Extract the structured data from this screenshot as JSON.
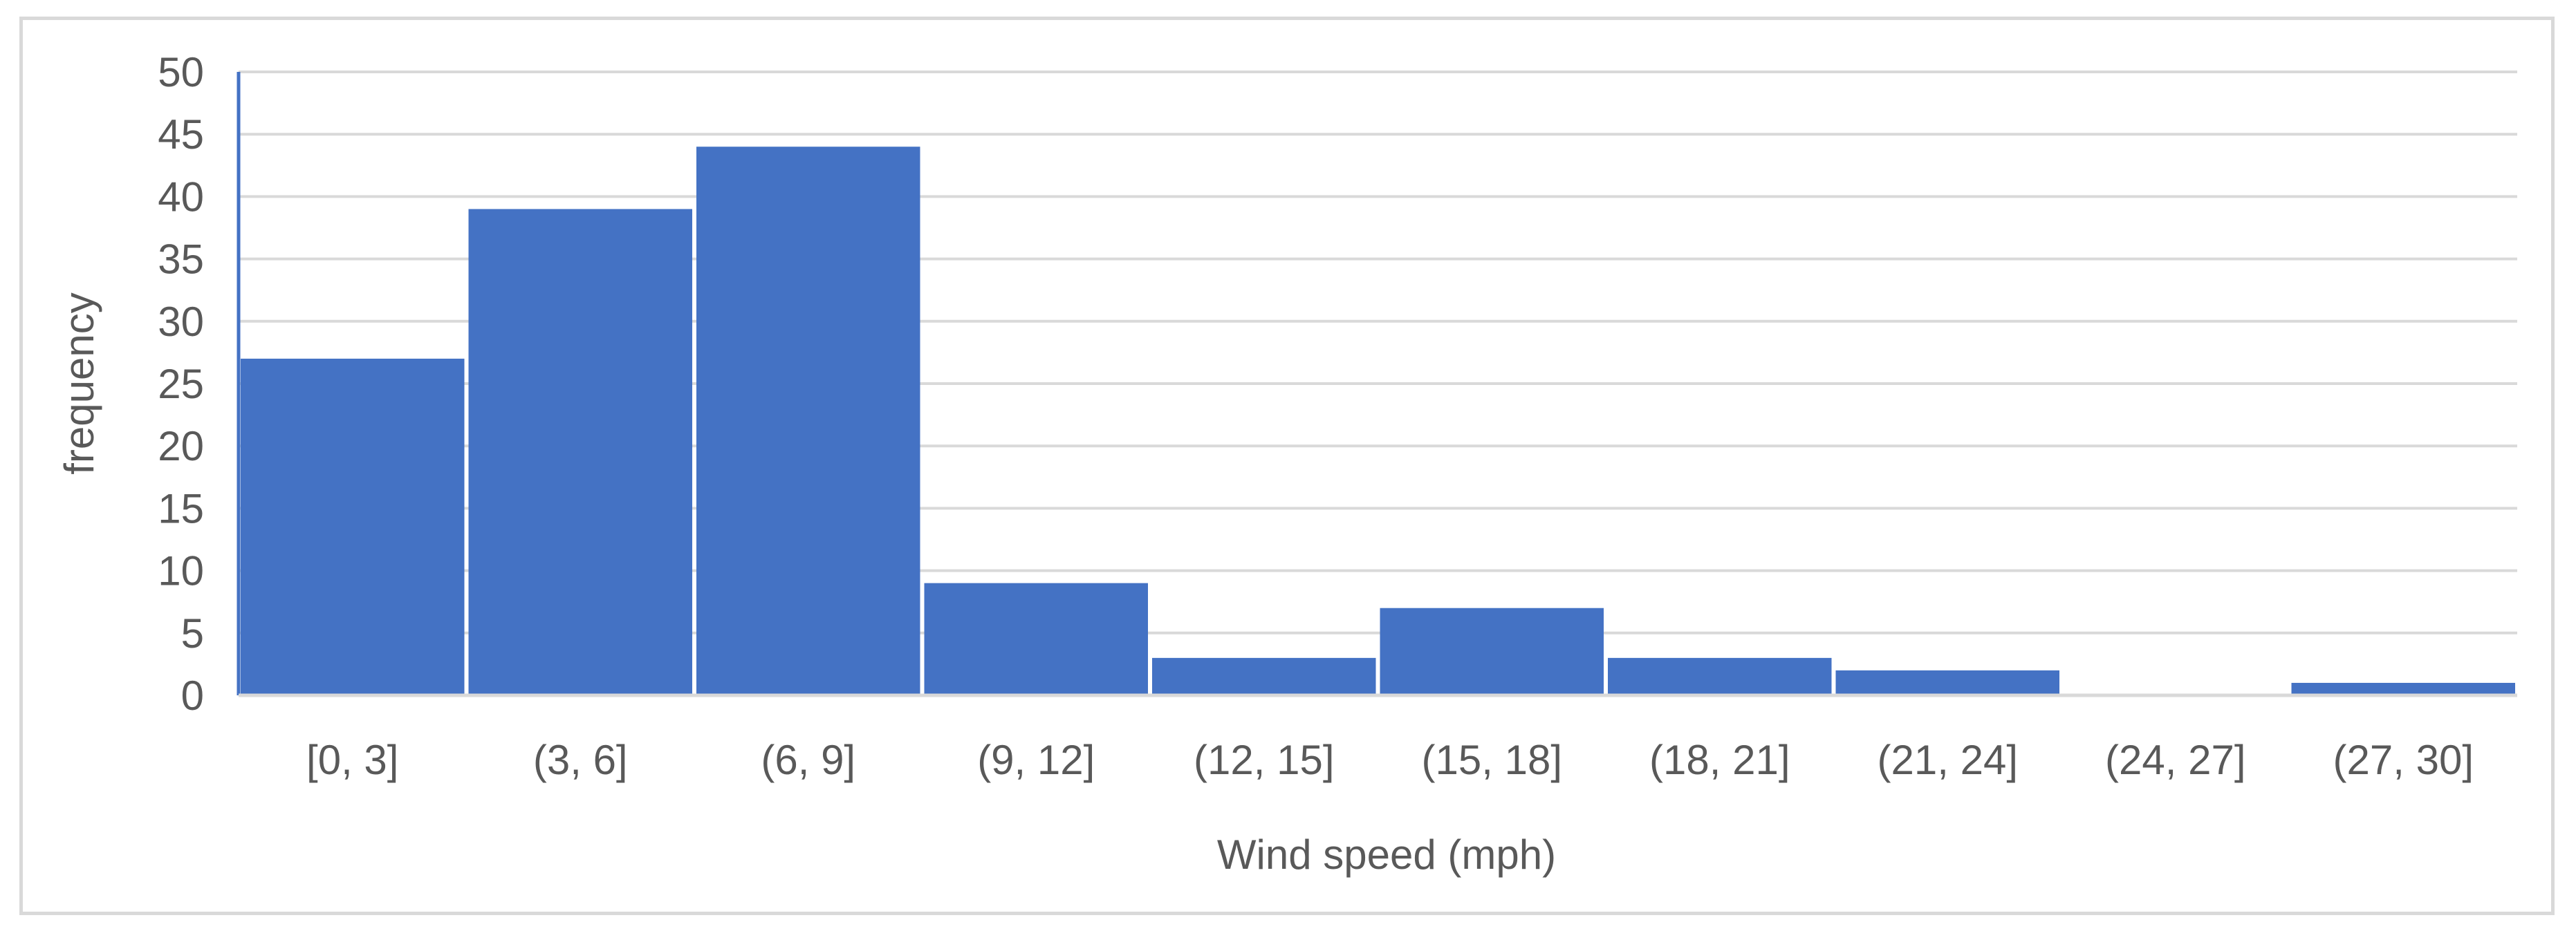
{
  "chart_data": {
    "type": "bar",
    "title": "",
    "xlabel": "Wind speed (mph)",
    "ylabel": "frequency",
    "categories": [
      "[0, 3]",
      "(3, 6]",
      "(6, 9]",
      "(9, 12]",
      "(12, 15]",
      "(15, 18]",
      "(18, 21]",
      "(21, 24]",
      "(24, 27]",
      "(27, 30]"
    ],
    "values": [
      27,
      39,
      44,
      9,
      3,
      7,
      3,
      2,
      0,
      1
    ],
    "ylim": [
      0,
      50
    ],
    "yticks": [
      0,
      5,
      10,
      15,
      20,
      25,
      30,
      35,
      40,
      45,
      50
    ],
    "grid": true,
    "legend": "none",
    "colors": {
      "bar": "#4472C4",
      "grid": "#d9d9d9",
      "axis": "#4472C4",
      "text": "#595959",
      "frame": "#d9d9d9"
    }
  }
}
